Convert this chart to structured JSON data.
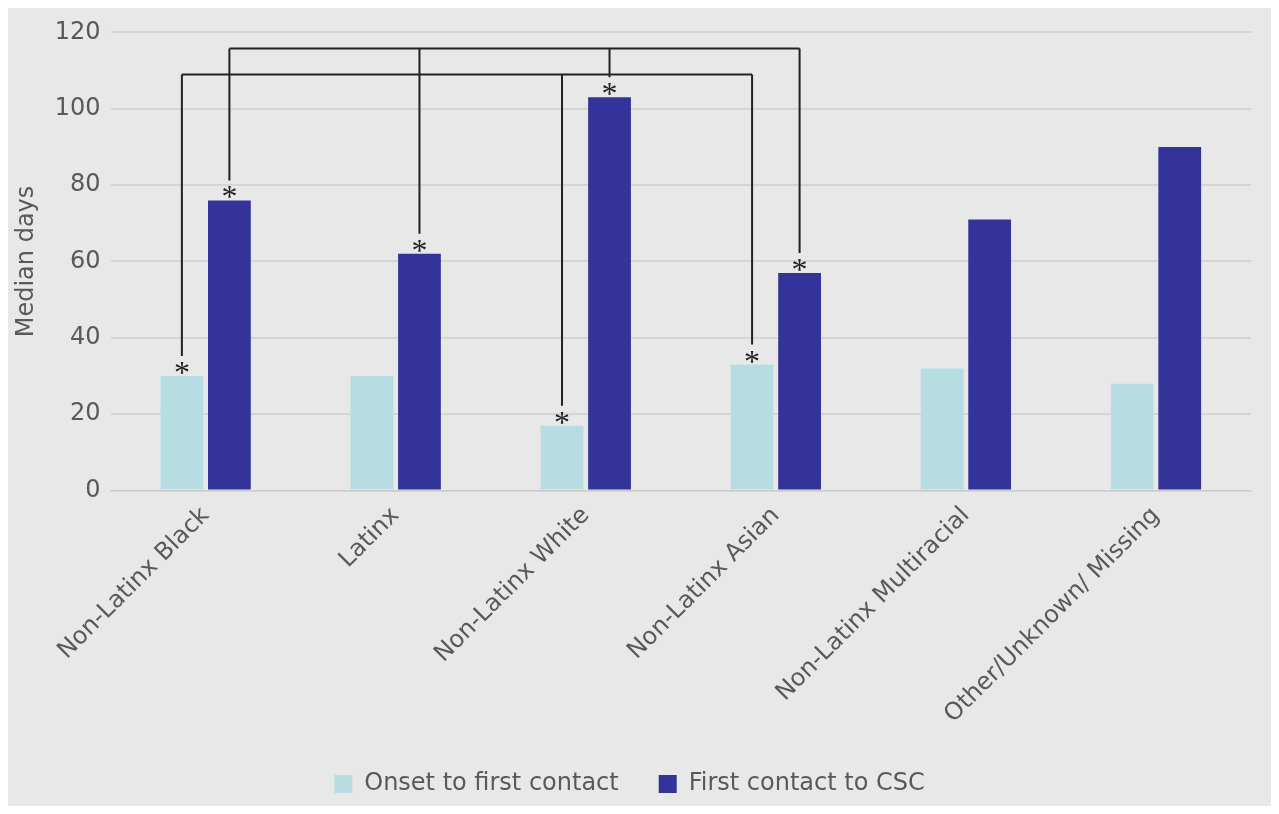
{
  "chart_data": {
    "type": "bar",
    "ylabel": "Median days",
    "categories": [
      "Non-Latinx Black",
      "Latinx",
      "Non-Latinx White",
      "Non-Latinx Asian",
      "Non-Latinx Multiracial",
      "Other/Unknown/ Missing"
    ],
    "series": [
      {
        "name": "Onset to first contact",
        "color": "#b7dde2",
        "values": [
          30,
          30,
          17,
          33,
          32,
          28
        ]
      },
      {
        "name": "First contact to CSC",
        "color": "#333399",
        "values": [
          76,
          62,
          103,
          57,
          71,
          90
        ]
      }
    ],
    "ylim": [
      0,
      120
    ],
    "yticks": [
      0,
      20,
      40,
      60,
      80,
      100,
      120
    ],
    "grid": "y",
    "legend": "bottom",
    "annotations": [
      {
        "text": "*",
        "x": "Non-Latinx Black",
        "y": 30
      },
      {
        "text": "*",
        "x": "Non-Latinx White",
        "y": 17
      },
      {
        "text": "*",
        "x": "Non-Latinx Asian",
        "y": 33
      },
      {
        "text": "*",
        "x": "Non-Latinx Black",
        "y": 76
      },
      {
        "text": "*",
        "x": "Latinx",
        "y": 62
      },
      {
        "text": "*",
        "x": "Non-Latinx White",
        "y": 103
      },
      {
        "text": "*",
        "x": "Non-Latinx Asian",
        "y": 57
      }
    ]
  }
}
